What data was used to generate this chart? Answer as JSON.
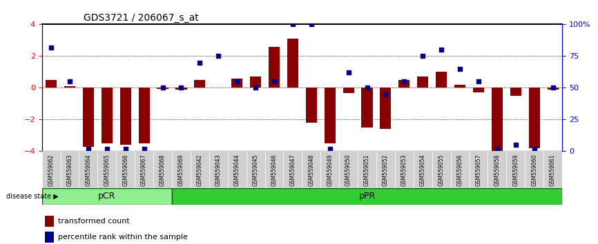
{
  "title": "GDS3721 / 206067_s_at",
  "samples": [
    "GSM559062",
    "GSM559063",
    "GSM559064",
    "GSM559065",
    "GSM559066",
    "GSM559067",
    "GSM559068",
    "GSM559069",
    "GSM559042",
    "GSM559043",
    "GSM559044",
    "GSM559045",
    "GSM559046",
    "GSM559047",
    "GSM559048",
    "GSM559049",
    "GSM559050",
    "GSM559051",
    "GSM559052",
    "GSM559053",
    "GSM559054",
    "GSM559055",
    "GSM559056",
    "GSM559057",
    "GSM559058",
    "GSM559059",
    "GSM559060",
    "GSM559061"
  ],
  "bar_values": [
    0.5,
    0.1,
    -3.7,
    -3.5,
    -3.6,
    -3.5,
    -0.05,
    -0.1,
    0.5,
    0.0,
    0.6,
    0.7,
    2.6,
    3.1,
    -2.2,
    -3.5,
    -0.35,
    -2.5,
    -2.6,
    0.5,
    0.7,
    1.0,
    0.2,
    -0.3,
    -4.0,
    -0.5,
    -3.8,
    -0.1
  ],
  "dot_values": [
    82,
    55,
    2,
    2,
    2,
    2,
    50,
    50,
    70,
    75,
    55,
    50,
    55,
    100,
    100,
    2,
    62,
    50,
    45,
    55,
    75,
    80,
    65,
    55,
    2,
    5,
    2,
    50
  ],
  "pCR_count": 7,
  "pPR_count": 21,
  "bar_color": "#8B0000",
  "dot_color": "#00008B",
  "background_color": "#ffffff",
  "axis_bg_color": "#ffffff",
  "tick_label_color": "#555555",
  "label_bg_color": "#d3d3d3",
  "pCR_color": "#90EE90",
  "pPR_color": "#32CD32",
  "ylim": [
    -4,
    4
  ],
  "y2lim": [
    0,
    100
  ],
  "yticks": [
    -4,
    -2,
    0,
    2,
    4
  ],
  "y2ticks": [
    0,
    25,
    50,
    75,
    100
  ],
  "y2ticklabels": [
    "0",
    "25",
    "50",
    "75",
    "100%"
  ]
}
